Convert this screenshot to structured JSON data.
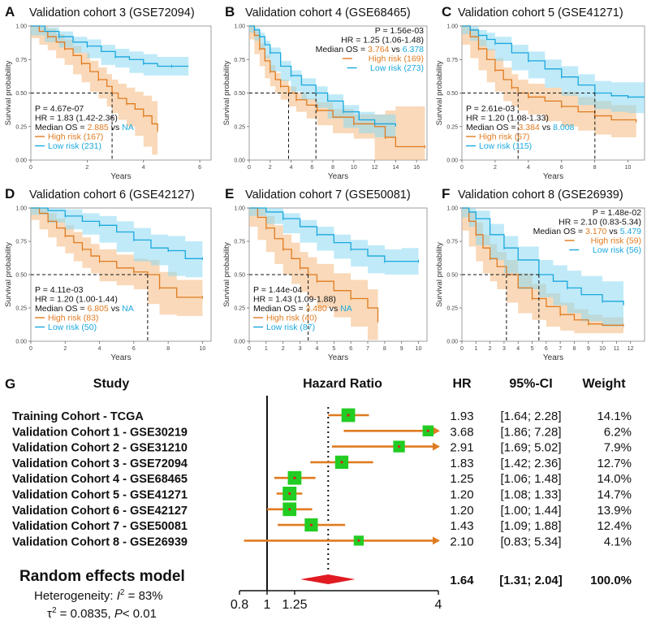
{
  "colors": {
    "high": "#E07B20",
    "low": "#1BA8DE",
    "high_band": "#F4B97F",
    "low_band": "#8CD8F3",
    "axis": "#555555",
    "square": "#22CC22",
    "diamond": "#E11B22"
  },
  "km_common": {
    "ylabel": "Survival probability",
    "xlabel": "Years",
    "yticks": [
      "0.00",
      "0.25",
      "0.50",
      "0.75",
      "1.00"
    ],
    "vs": " vs "
  },
  "chart_data": [
    {
      "type": "line",
      "panel": "A",
      "title": "Validation cohort 3 (GSE72094)",
      "xlim": [
        0,
        6.4
      ],
      "xticks": [
        0,
        2,
        4,
        6
      ],
      "ylim": [
        0,
        1
      ],
      "stats": {
        "p": "P = 4.67e-07",
        "hr": "HR = 1.83 (1.42-2.36)",
        "median_label": "Median OS = ",
        "median_high": "2.885",
        "median_low": "NA",
        "high_legend": "High risk (167)",
        "low_legend": "Low risk (231)"
      },
      "stats_pos": "bottom-left",
      "medians": [
        2.885
      ],
      "series": [
        {
          "name": "High risk",
          "x": [
            0,
            0.3,
            0.6,
            0.9,
            1.2,
            1.5,
            1.8,
            2.1,
            2.4,
            2.7,
            2.885,
            3.1,
            3.4,
            3.7,
            4.0,
            4.3,
            4.5
          ],
          "y": [
            1.0,
            0.96,
            0.92,
            0.88,
            0.83,
            0.78,
            0.72,
            0.66,
            0.6,
            0.55,
            0.5,
            0.46,
            0.42,
            0.38,
            0.33,
            0.27,
            0.22
          ],
          "band": [
            0.04,
            0.05,
            0.06,
            0.06,
            0.07,
            0.07,
            0.08,
            0.08,
            0.09,
            0.09,
            0.1,
            0.11,
            0.12,
            0.13,
            0.15,
            0.17,
            0.18
          ]
        },
        {
          "name": "Low risk",
          "x": [
            0,
            0.5,
            1.0,
            1.5,
            2.0,
            2.5,
            3.0,
            3.5,
            4.0,
            4.5,
            5.0,
            5.6
          ],
          "y": [
            1.0,
            0.96,
            0.92,
            0.88,
            0.85,
            0.81,
            0.77,
            0.75,
            0.72,
            0.7,
            0.7,
            0.7
          ],
          "band": [
            0.02,
            0.03,
            0.04,
            0.04,
            0.05,
            0.05,
            0.06,
            0.06,
            0.07,
            0.07,
            0.07,
            0.07
          ]
        }
      ]
    },
    {
      "type": "line",
      "panel": "B",
      "title": "Validation cohort 4 (GSE68465)",
      "xlim": [
        0,
        17
      ],
      "xticks": [
        0,
        2,
        4,
        6,
        8,
        10,
        12,
        14,
        16
      ],
      "ylim": [
        0,
        1
      ],
      "stats": {
        "p": "P = 1.56e-03",
        "hr": "HR = 1.25 (1.06-1.48)",
        "median_label": "Median OS = ",
        "median_high": "3.764",
        "median_low": "6.378",
        "high_legend": "High risk (169)",
        "low_legend": "Low risk (273)"
      },
      "stats_pos": "top-right",
      "medians": [
        3.764,
        6.378
      ],
      "series": [
        {
          "name": "High risk",
          "x": [
            0,
            0.5,
            1.0,
            1.5,
            2.0,
            2.5,
            3.0,
            3.764,
            4.5,
            5.5,
            6.5,
            8.0,
            10.0,
            12.0,
            13.0,
            14.0,
            16.8
          ],
          "y": [
            1.0,
            0.93,
            0.83,
            0.74,
            0.66,
            0.6,
            0.55,
            0.5,
            0.45,
            0.41,
            0.37,
            0.32,
            0.27,
            0.25,
            0.17,
            0.1,
            0.1
          ],
          "band": [
            0.02,
            0.03,
            0.04,
            0.04,
            0.05,
            0.05,
            0.05,
            0.05,
            0.05,
            0.05,
            0.06,
            0.06,
            0.07,
            0.09,
            0.2,
            0.3,
            0.3
          ]
        },
        {
          "name": "Low risk",
          "x": [
            0,
            0.5,
            1.0,
            1.5,
            2.0,
            3.0,
            4.0,
            5.0,
            6.378,
            7.5,
            9.0,
            10.5,
            12.0,
            14.0
          ],
          "y": [
            1.0,
            0.97,
            0.92,
            0.86,
            0.8,
            0.7,
            0.63,
            0.56,
            0.5,
            0.44,
            0.36,
            0.3,
            0.27,
            0.25
          ],
          "band": [
            0.01,
            0.02,
            0.03,
            0.03,
            0.04,
            0.04,
            0.04,
            0.05,
            0.05,
            0.05,
            0.05,
            0.06,
            0.07,
            0.08
          ]
        }
      ]
    },
    {
      "type": "line",
      "panel": "C",
      "title": "Validation cohort 5 (GSE41271)",
      "xlim": [
        0,
        11
      ],
      "xticks": [
        0,
        2,
        4,
        6,
        8,
        10
      ],
      "ylim": [
        0,
        1
      ],
      "stats": {
        "p": "P = 2.61e-03",
        "hr": "HR = 1.20 (1.08-1.33)",
        "median_label": "Median OS = ",
        "median_high": "3.384",
        "median_low": "8.008",
        "high_legend": "High risk (67)",
        "low_legend": "Low risk (115)"
      },
      "stats_pos": "bottom-left",
      "medians": [
        3.384,
        8.008
      ],
      "series": [
        {
          "name": "High risk",
          "x": [
            0,
            0.5,
            1.0,
            1.5,
            2.0,
            2.5,
            3.0,
            3.384,
            4.0,
            5.0,
            6.0,
            7.0,
            8.0,
            9.0,
            10.5
          ],
          "y": [
            1.0,
            0.92,
            0.83,
            0.75,
            0.67,
            0.6,
            0.54,
            0.5,
            0.47,
            0.44,
            0.4,
            0.36,
            0.33,
            0.3,
            0.29
          ],
          "band": [
            0.04,
            0.06,
            0.07,
            0.08,
            0.09,
            0.09,
            0.1,
            0.1,
            0.1,
            0.1,
            0.11,
            0.11,
            0.11,
            0.11,
            0.12
          ]
        },
        {
          "name": "Low risk",
          "x": [
            0,
            0.5,
            1.0,
            1.5,
            2.0,
            3.0,
            4.0,
            5.0,
            6.0,
            7.0,
            8.008,
            9.0,
            10.0,
            11.0
          ],
          "y": [
            1.0,
            0.97,
            0.93,
            0.9,
            0.87,
            0.8,
            0.74,
            0.68,
            0.62,
            0.56,
            0.5,
            0.48,
            0.47,
            0.47
          ],
          "band": [
            0.02,
            0.03,
            0.04,
            0.05,
            0.05,
            0.06,
            0.07,
            0.07,
            0.08,
            0.08,
            0.09,
            0.1,
            0.11,
            0.12
          ]
        }
      ]
    },
    {
      "type": "line",
      "panel": "D",
      "title": "Validation cohort 6 (GSE42127)",
      "xlim": [
        0,
        10.5
      ],
      "xticks": [
        0,
        2,
        4,
        6,
        8,
        10
      ],
      "ylim": [
        0,
        1
      ],
      "stats": {
        "p": "P = 4.11e-03",
        "hr": "HR = 1.20 (1.00-1.44)",
        "median_label": "Median OS = ",
        "median_high": "6.805",
        "median_low": "NA",
        "high_legend": "High risk (83)",
        "low_legend": "Low risk (50)"
      },
      "stats_pos": "bottom-left",
      "medians": [
        6.805
      ],
      "series": [
        {
          "name": "High risk",
          "x": [
            0,
            0.5,
            1.0,
            1.5,
            2.0,
            2.5,
            3.0,
            3.5,
            4.0,
            5.0,
            6.0,
            6.805,
            7.5,
            8.5,
            10.0
          ],
          "y": [
            1.0,
            0.96,
            0.9,
            0.85,
            0.79,
            0.74,
            0.69,
            0.64,
            0.6,
            0.55,
            0.52,
            0.5,
            0.4,
            0.33,
            0.33
          ],
          "band": [
            0.03,
            0.05,
            0.06,
            0.07,
            0.08,
            0.08,
            0.09,
            0.09,
            0.09,
            0.1,
            0.1,
            0.11,
            0.12,
            0.13,
            0.14
          ]
        },
        {
          "name": "Low risk",
          "x": [
            0,
            1.0,
            2.0,
            3.0,
            4.0,
            5.0,
            6.0,
            7.0,
            8.0,
            9.0,
            10.0
          ],
          "y": [
            1.0,
            0.98,
            0.94,
            0.9,
            0.87,
            0.82,
            0.76,
            0.7,
            0.68,
            0.62,
            0.62
          ],
          "band": [
            0.02,
            0.03,
            0.05,
            0.06,
            0.07,
            0.08,
            0.09,
            0.1,
            0.11,
            0.13,
            0.14
          ]
        }
      ]
    },
    {
      "type": "line",
      "panel": "E",
      "title": "Validation cohort 7 (GSE50081)",
      "xlim": [
        0,
        10.5
      ],
      "xticks": [
        0,
        1,
        2,
        3,
        4,
        5,
        6,
        7,
        8,
        9,
        10
      ],
      "ylim": [
        0,
        1
      ],
      "stats": {
        "p": "P = 1.44e-04",
        "hr": "HR = 1.43 (1.09-1.88)",
        "median_label": "Median OS = ",
        "median_high": "3.480",
        "median_low": "NA",
        "high_legend": "High risk (40)",
        "low_legend": "Low risk (87)"
      },
      "stats_pos": "bottom-left",
      "medians": [
        3.48
      ],
      "series": [
        {
          "name": "High risk",
          "x": [
            0,
            0.5,
            1.0,
            1.5,
            2.0,
            2.5,
            3.0,
            3.48,
            4.0,
            5.0,
            6.0,
            7.0,
            7.6
          ],
          "y": [
            1.0,
            0.93,
            0.85,
            0.77,
            0.69,
            0.62,
            0.55,
            0.5,
            0.45,
            0.38,
            0.32,
            0.25,
            0.15
          ],
          "band": [
            0.04,
            0.07,
            0.09,
            0.1,
            0.11,
            0.12,
            0.12,
            0.13,
            0.13,
            0.13,
            0.14,
            0.14,
            0.14
          ]
        },
        {
          "name": "Low risk",
          "x": [
            0,
            1.0,
            2.0,
            3.0,
            4.0,
            5.0,
            6.0,
            7.0,
            8.0,
            9.0,
            10.0
          ],
          "y": [
            1.0,
            0.97,
            0.92,
            0.86,
            0.8,
            0.74,
            0.69,
            0.64,
            0.6,
            0.6,
            0.6
          ],
          "band": [
            0.02,
            0.03,
            0.04,
            0.05,
            0.06,
            0.06,
            0.07,
            0.08,
            0.09,
            0.1,
            0.1
          ]
        }
      ]
    },
    {
      "type": "line",
      "panel": "F",
      "title": "Validation cohort 8 (GSE26939)",
      "xlim": [
        0,
        13
      ],
      "xticks": [
        0,
        1,
        2,
        3,
        4,
        5,
        6,
        7,
        8,
        9,
        10,
        11,
        12
      ],
      "ylim": [
        0,
        1
      ],
      "stats": {
        "p": "P = 1.48e-02",
        "hr": "HR = 2.10 (0.83-5.34)",
        "median_label": "Median OS = ",
        "median_high": "3.170",
        "median_low": "5.479",
        "high_legend": "High risk (59)",
        "low_legend": "Low risk (56)"
      },
      "stats_pos": "top-right",
      "medians": [
        3.17,
        5.479
      ],
      "series": [
        {
          "name": "High risk",
          "x": [
            0,
            0.5,
            1.0,
            1.5,
            2.0,
            2.5,
            3.17,
            4.0,
            5.0,
            6.0,
            7.0,
            8.0,
            9.0,
            10.0,
            11.5
          ],
          "y": [
            1.0,
            0.9,
            0.8,
            0.7,
            0.62,
            0.56,
            0.5,
            0.4,
            0.32,
            0.26,
            0.2,
            0.16,
            0.13,
            0.12,
            0.12
          ],
          "band": [
            0.03,
            0.07,
            0.09,
            0.1,
            0.11,
            0.11,
            0.11,
            0.11,
            0.11,
            0.1,
            0.09,
            0.08,
            0.07,
            0.06,
            0.06
          ]
        },
        {
          "name": "Low risk",
          "x": [
            0,
            0.5,
            1.0,
            2.0,
            3.0,
            4.0,
            5.479,
            6.5,
            7.5,
            8.5,
            10.0,
            11.5
          ],
          "y": [
            1.0,
            0.97,
            0.92,
            0.8,
            0.7,
            0.61,
            0.5,
            0.45,
            0.4,
            0.35,
            0.3,
            0.27
          ],
          "band": [
            0.02,
            0.04,
            0.06,
            0.08,
            0.09,
            0.1,
            0.11,
            0.12,
            0.13,
            0.14,
            0.15,
            0.16
          ]
        }
      ]
    },
    {
      "type": "forest",
      "panel": "G",
      "headers": {
        "study": "Study",
        "hazard_ratio": "Hazard Ratio",
        "hr": "HR",
        "ci": "95%-CI",
        "weight": "Weight"
      },
      "xticks": [
        0.8,
        1,
        1.25,
        4
      ],
      "xtick_labels": [
        "0.8",
        "1",
        "1.25",
        "4"
      ],
      "xscale": "log",
      "xlim": [
        0.8,
        4
      ],
      "studies": [
        {
          "name": "Training Cohort - TCGA",
          "hr": 1.93,
          "lo": 1.64,
          "hi": 2.28,
          "hr_text": "1.93",
          "ci_text": "[1.64; 2.28]",
          "weight": 14.1,
          "weight_text": "14.1%"
        },
        {
          "name": "Validation Cohort 1 - GSE30219",
          "hr": 3.68,
          "lo": 1.86,
          "hi": 7.28,
          "hr_text": "3.68",
          "ci_text": "[1.86; 7.28]",
          "weight": 6.2,
          "weight_text": "6.2%"
        },
        {
          "name": "Validation Cohort 2 - GSE31210",
          "hr": 2.91,
          "lo": 1.69,
          "hi": 5.02,
          "hr_text": "2.91",
          "ci_text": "[1.69; 5.02]",
          "weight": 7.9,
          "weight_text": "7.9%"
        },
        {
          "name": "Validation Cohort 3 - GSE72094",
          "hr": 1.83,
          "lo": 1.42,
          "hi": 2.36,
          "hr_text": "1.83",
          "ci_text": "[1.42; 2.36]",
          "weight": 12.7,
          "weight_text": "12.7%"
        },
        {
          "name": "Validation Cohort 4 - GSE68465",
          "hr": 1.25,
          "lo": 1.06,
          "hi": 1.48,
          "hr_text": "1.25",
          "ci_text": "[1.06; 1.48]",
          "weight": 14.0,
          "weight_text": "14.0%"
        },
        {
          "name": "Validation Cohort 5 - GSE41271",
          "hr": 1.2,
          "lo": 1.08,
          "hi": 1.33,
          "hr_text": "1.20",
          "ci_text": "[1.08; 1.33]",
          "weight": 14.7,
          "weight_text": "14.7%"
        },
        {
          "name": "Validation Cohort 6 - GSE42127",
          "hr": 1.2,
          "lo": 1.0,
          "hi": 1.44,
          "hr_text": "1.20",
          "ci_text": "[1.00; 1.44]",
          "weight": 13.9,
          "weight_text": "13.9%"
        },
        {
          "name": "Validation Cohort 7 - GSE50081",
          "hr": 1.43,
          "lo": 1.09,
          "hi": 1.88,
          "hr_text": "1.43",
          "ci_text": "[1.09; 1.88]",
          "weight": 12.4,
          "weight_text": "12.4%"
        },
        {
          "name": "Validation Cohort 8 - GSE26939",
          "hr": 2.1,
          "lo": 0.83,
          "hi": 5.34,
          "hr_text": "2.10",
          "ci_text": "[0.83; 5.34]",
          "weight": 4.1,
          "weight_text": "4.1%"
        }
      ],
      "summary": {
        "name": "Random effects model",
        "hr": 1.64,
        "lo": 1.31,
        "hi": 2.04,
        "hr_text": "1.64",
        "ci_text": "[1.31; 2.04]",
        "weight_text": "100.0%"
      },
      "heterogeneity": {
        "label": "Heterogeneity: ",
        "i2_letter": "I",
        "i2_sup": "2",
        "i2_value": " = 83%",
        "tau_label": "τ",
        "tau_sup": "2",
        "tau_value": " = 0.0835",
        "p_letter": "P",
        "p_value": "< 0.01"
      }
    }
  ]
}
